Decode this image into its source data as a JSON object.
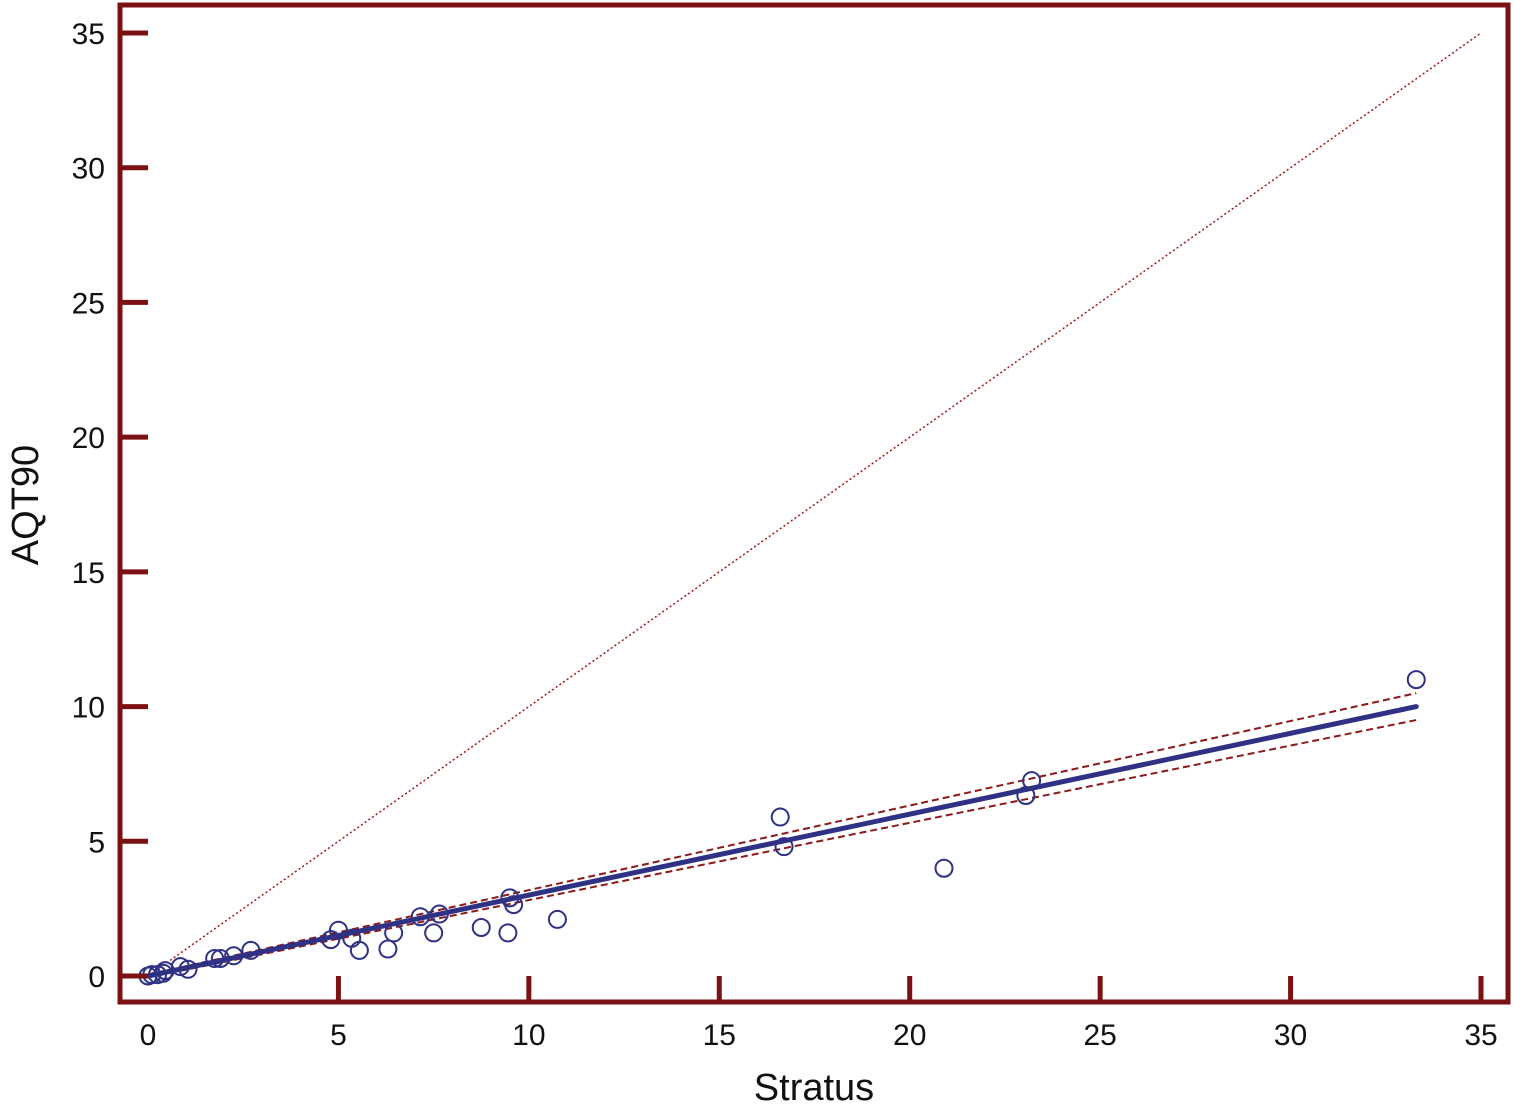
{
  "colors": {
    "frame": "#7b1113",
    "fit_line": "#2e3184",
    "points": "#2e3184",
    "identity_line": "#a6151a",
    "confidence_band": "#8b1a1a",
    "background": "#ffffff"
  },
  "chart_data": {
    "type": "scatter",
    "title": "",
    "xlabel": "Stratus",
    "ylabel": "AQT90",
    "xlim": [
      -0.7,
      36
    ],
    "ylim": [
      -1,
      36
    ],
    "x_ticks": [
      0,
      5,
      10,
      15,
      20,
      25,
      30,
      35
    ],
    "y_ticks": [
      0,
      5,
      10,
      15,
      20,
      25,
      30,
      35
    ],
    "x_tick_labels": [
      "0",
      "5",
      "10",
      "15",
      "20",
      "25",
      "30",
      "35"
    ],
    "y_tick_labels": [
      "0",
      "5",
      "10",
      "15",
      "20",
      "25",
      "30",
      "35"
    ],
    "grid": false,
    "legend": "none",
    "points": [
      {
        "x": 0.0,
        "y": 0.0
      },
      {
        "x": 0.1,
        "y": 0.05
      },
      {
        "x": 0.25,
        "y": 0.05
      },
      {
        "x": 0.4,
        "y": 0.1
      },
      {
        "x": 0.45,
        "y": 0.2
      },
      {
        "x": 0.85,
        "y": 0.35
      },
      {
        "x": 1.05,
        "y": 0.25
      },
      {
        "x": 1.75,
        "y": 0.65
      },
      {
        "x": 1.9,
        "y": 0.65
      },
      {
        "x": 2.25,
        "y": 0.75
      },
      {
        "x": 2.7,
        "y": 0.95
      },
      {
        "x": 4.8,
        "y": 1.35
      },
      {
        "x": 5.0,
        "y": 1.7
      },
      {
        "x": 5.35,
        "y": 1.4
      },
      {
        "x": 5.55,
        "y": 0.95
      },
      {
        "x": 6.3,
        "y": 1.0
      },
      {
        "x": 6.45,
        "y": 1.6
      },
      {
        "x": 7.15,
        "y": 2.2
      },
      {
        "x": 7.5,
        "y": 1.6
      },
      {
        "x": 7.65,
        "y": 2.3
      },
      {
        "x": 8.75,
        "y": 1.8
      },
      {
        "x": 9.45,
        "y": 1.6
      },
      {
        "x": 9.5,
        "y": 2.9
      },
      {
        "x": 9.6,
        "y": 2.65
      },
      {
        "x": 10.75,
        "y": 2.1
      },
      {
        "x": 16.6,
        "y": 5.9
      },
      {
        "x": 16.7,
        "y": 4.8
      },
      {
        "x": 20.9,
        "y": 4.0
      },
      {
        "x": 23.05,
        "y": 6.7
      },
      {
        "x": 23.2,
        "y": 7.25
      },
      {
        "x": 33.3,
        "y": 11.0
      }
    ],
    "regression_line": {
      "x": [
        0,
        33.3
      ],
      "y": [
        0,
        10.0
      ]
    },
    "confidence_band_upper": {
      "x": [
        0,
        33.3
      ],
      "y": [
        0.05,
        10.5
      ]
    },
    "confidence_band_lower": {
      "x": [
        0,
        33.3
      ],
      "y": [
        -0.05,
        9.5
      ]
    },
    "identity_line": {
      "x": [
        0,
        35
      ],
      "y": [
        0,
        35
      ]
    }
  }
}
